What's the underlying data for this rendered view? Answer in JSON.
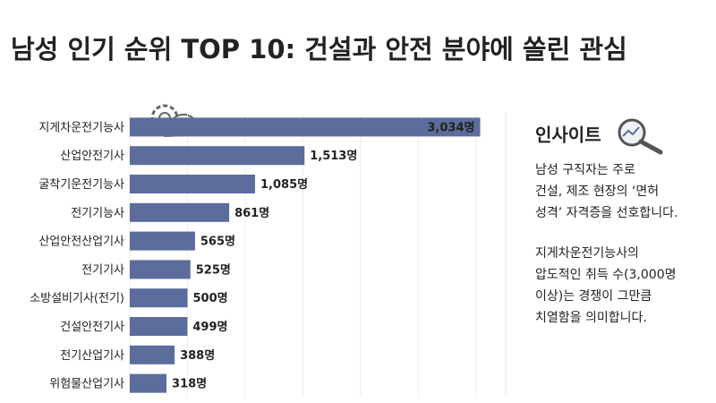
{
  "chart_data": {
    "type": "bar",
    "orientation": "horizontal",
    "title": "남성 인기 순위 TOP 10: 건설과 안전 분야에 쏠린 관심",
    "categories": [
      "지게차운전기능사",
      "산업안전기사",
      "굴착기운전기능사",
      "전기기능사",
      "산업안전산업기사",
      "전기기사",
      "소방설비기사(전기)",
      "건설안전기사",
      "전기산업기사",
      "위험물산업기사"
    ],
    "values": [
      3034,
      1513,
      1085,
      861,
      565,
      525,
      500,
      499,
      388,
      318
    ],
    "value_labels": [
      "3,034명",
      "1,513명",
      "1,085명",
      "861명",
      "565명",
      "525명",
      "500명",
      "499명",
      "388명",
      "318명"
    ],
    "color": "#5b6c9d",
    "xlim": [
      0,
      3100
    ],
    "xticks": [
      0,
      500,
      1000,
      1500,
      2000,
      2500,
      3000
    ],
    "grid": true,
    "insight": {
      "title": "인사이트",
      "paragraphs": [
        [
          "남성 구직자는 주로",
          "건설, 제조 현장의 ‘면허",
          "성격’ 자격증을 선호합니다."
        ],
        [
          "지게차운전기능사의",
          "압도적인 취득 수(3,000명",
          "이상)는 경쟁이 그만큼",
          "치열함을 의미합니다."
        ]
      ]
    }
  }
}
